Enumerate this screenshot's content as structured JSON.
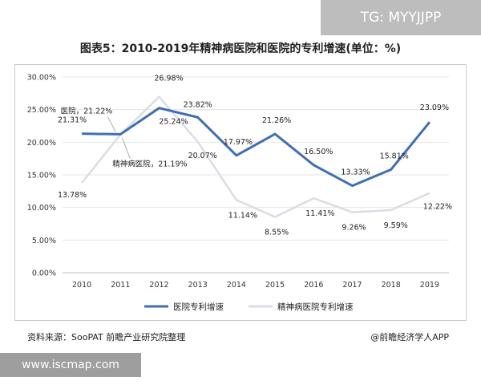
{
  "watermark_top": "TG: MYYJJPP",
  "watermark_bottom": "www.iscmap.com",
  "footer": {
    "source": "资料来源：SooPAT 前瞻产业研究院整理",
    "brand": "@前瞻经济学人APP"
  },
  "colors": {
    "hospital": "#3f6fb3",
    "psych": "#d9dee4",
    "grid": "#e4e4e4",
    "axis": "#555555"
  },
  "chart_data": {
    "type": "line",
    "title": "图表5：2010-2019年精神病医院和医院的专利增速(单位：%)",
    "x": [
      "2010",
      "2011",
      "2012",
      "2013",
      "2014",
      "2015",
      "2016",
      "2017",
      "2018",
      "2019"
    ],
    "ylim": [
      0,
      30
    ],
    "yticks": [
      "0.00%",
      "5.00%",
      "10.00%",
      "15.00%",
      "20.00%",
      "25.00%",
      "30.00%"
    ],
    "grid": "horizontal",
    "legend_position": "bottom",
    "series": [
      {
        "name": "医院专利增速",
        "values": [
          21.31,
          21.22,
          25.24,
          23.82,
          17.97,
          21.26,
          16.5,
          13.33,
          15.81,
          23.09
        ],
        "labels": [
          "21.31%",
          "医院，21.22%",
          "25.24%",
          "23.82%",
          "17.97%",
          "21.26%",
          "16.50%",
          "13.33%",
          "15.81%",
          "23.09%"
        ]
      },
      {
        "name": "精神病医院专利增速",
        "values": [
          13.78,
          21.19,
          26.98,
          20.07,
          11.14,
          8.55,
          11.41,
          9.26,
          9.59,
          12.22
        ],
        "labels": [
          "13.78%",
          "精神病医院，21.19%",
          "26.98%",
          "20.07%",
          "11.14%",
          "8.55%",
          "11.41%",
          "9.26%",
          "9.59%",
          "12.22%"
        ]
      }
    ]
  }
}
